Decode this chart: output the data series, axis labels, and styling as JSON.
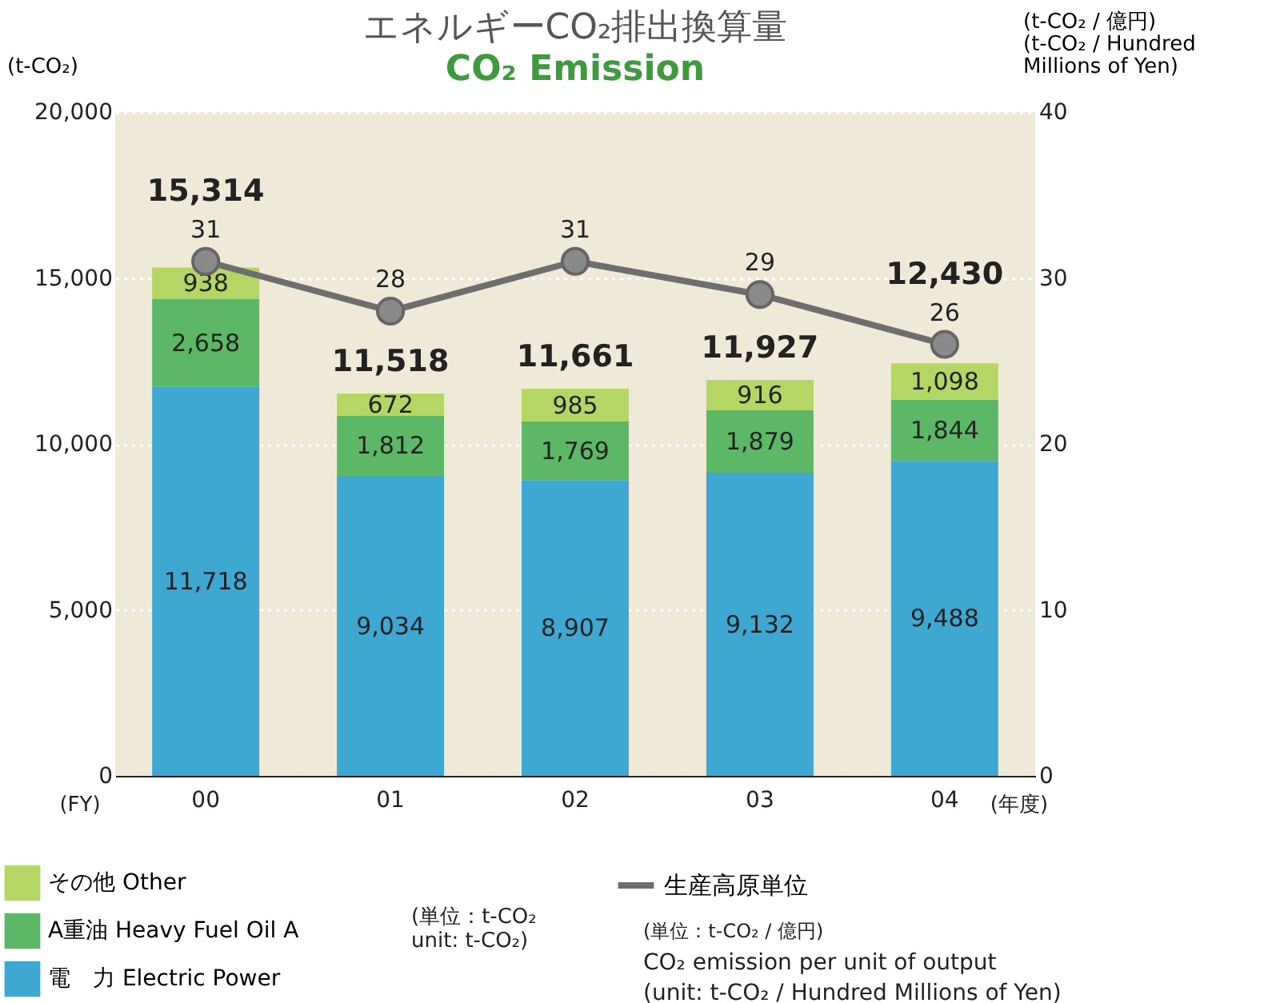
{
  "chart_data": {
    "type": "bar",
    "title": "エネルギーCO₂排出換算量",
    "subtitle": "CO₂ Emission",
    "ylabel": "(t-CO₂)",
    "y2label": "(t-CO₂ / 億円)\n(t-CO₂ / Hundred\n Millions  of Yen)",
    "categories": [
      "00",
      "01",
      "02",
      "03",
      "04"
    ],
    "stacked": true,
    "series": [
      {
        "name": "電　力  Electric Power",
        "color": "#3ea7d2",
        "values": [
          11718,
          9034,
          8907,
          9132,
          9488
        ],
        "value_labels": [
          "11,718",
          "9,034",
          "8,907",
          "9,132",
          "9,488"
        ]
      },
      {
        "name": "A重油  Heavy Fuel Oil A",
        "color": "#5cb867",
        "values": [
          2658,
          1812,
          1769,
          1879,
          1844
        ],
        "value_labels": [
          "2,658",
          "1,812",
          "1,769",
          "1,879",
          "1,844"
        ]
      },
      {
        "name": "その他  Other",
        "color": "#b3d665",
        "values": [
          938,
          672,
          985,
          916,
          1098
        ],
        "value_labels": [
          "938",
          "672",
          "985",
          "916",
          "1,098"
        ]
      },
      {
        "name": "生産高原単位",
        "type": "line",
        "axis": "y2",
        "color": "#6e6e6e",
        "values": [
          31,
          28,
          31,
          29,
          26
        ]
      }
    ],
    "totals": [
      "15,314",
      "11,518",
      "11,661",
      "11,927",
      "12,430"
    ],
    "data_labels": true,
    "ylim": [
      0,
      20000
    ],
    "yticks": [
      0,
      {
        "value": 5000,
        "label": "5,000"
      },
      {
        "value": 10000,
        "label": "10,000"
      },
      {
        "value": 15000,
        "label": "15,000"
      },
      {
        "value": 20000,
        "label": "20,000"
      }
    ],
    "y2lim": [
      0,
      40
    ],
    "y2ticks": [
      0,
      10,
      20,
      30,
      40
    ],
    "grid": "y",
    "legend": "bottom",
    "marker": "circle",
    "line_style": "solid",
    "annotations": [
      "(FY)",
      "(年度)",
      "(単位：t-CO₂\nunit: t-CO₂)",
      "(単位：t-CO₂ / 億円)",
      "CO₂ emission per unit of output",
      "(unit: t-CO₂ / Hundred Millions of Yen)"
    ]
  }
}
